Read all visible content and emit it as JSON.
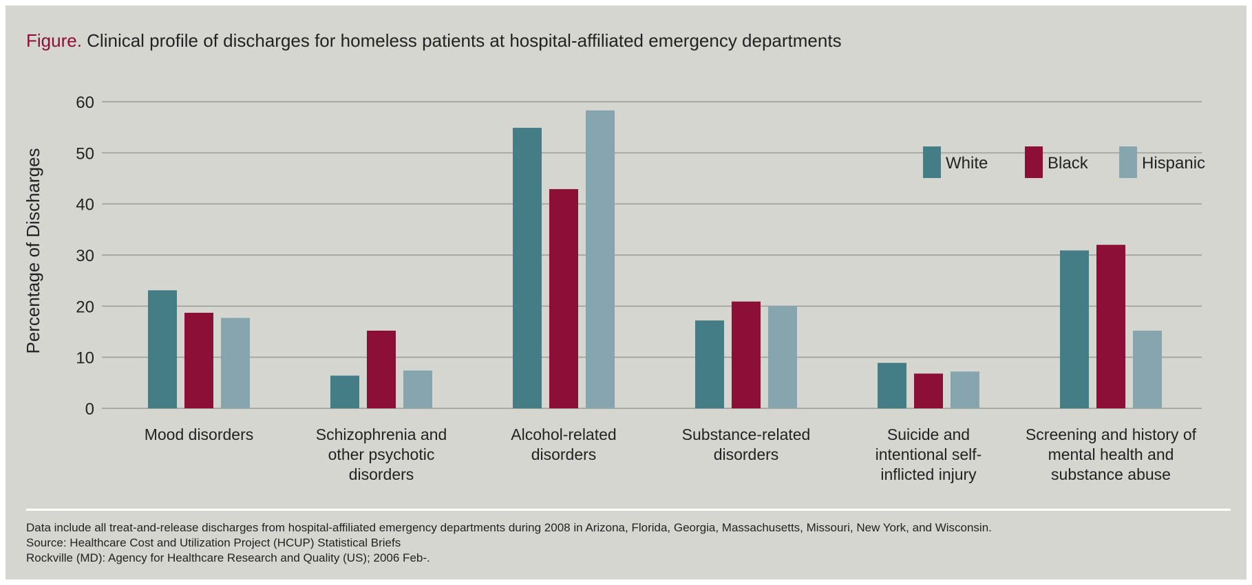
{
  "title": {
    "lead": "Figure.",
    "text": "Clinical profile of discharges for homeless patients at hospital-affiliated emergency departments"
  },
  "chart_data": {
    "type": "bar",
    "ylabel": "Percentage of Discharges",
    "xlabel": "",
    "ylim": [
      0,
      60
    ],
    "yticks": [
      "0",
      "10",
      "20",
      "30",
      "40",
      "50",
      "60"
    ],
    "grid": true,
    "legend_position": "top-right",
    "categories": [
      [
        "Mood disorders"
      ],
      [
        "Schizophrenia and",
        "other psychotic",
        "disorders"
      ],
      [
        "Alcohol-related",
        "disorders"
      ],
      [
        "Substance-related",
        "disorders"
      ],
      [
        "Suicide and",
        "intentional self-",
        "inflicted injury"
      ],
      [
        "Screening and history of",
        "mental health and",
        "substance abuse"
      ]
    ],
    "series": [
      {
        "name": "White",
        "color": "#457d87",
        "values": [
          23.1,
          6.4,
          54.9,
          17.2,
          8.9,
          30.9
        ]
      },
      {
        "name": "Black",
        "color": "#8c0f38",
        "values": [
          18.7,
          15.2,
          42.9,
          20.9,
          6.8,
          32.0
        ]
      },
      {
        "name": "Hispanic",
        "color": "#87a5ae",
        "values": [
          17.7,
          7.4,
          58.3,
          20.0,
          7.2,
          15.2
        ]
      }
    ]
  },
  "footnotes": [
    "Data include all treat-and-release discharges from hospital-affiliated emergency departments during 2008 in Arizona, Florida, Georgia, Massachusetts, Missouri, New York, and Wisconsin.",
    "Source: Healthcare Cost and Utilization Project (HCUP) Statistical Briefs",
    "Rockville (MD): Agency for Healthcare Research and Quality (US); 2006 Feb-."
  ]
}
